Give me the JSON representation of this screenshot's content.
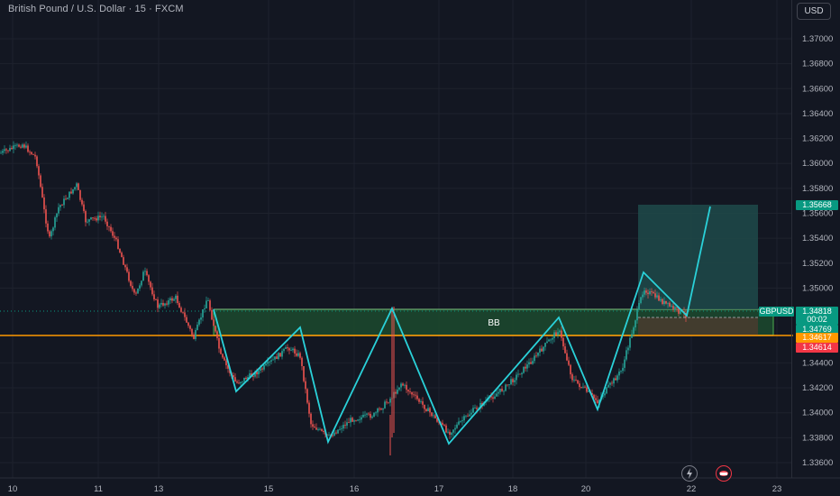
{
  "title": "British Pound / U.S. Dollar · 15 · FXCM",
  "currency_button": "USD",
  "symbol": "GBPUSD",
  "zone_label": "BB",
  "price_axis": {
    "ticks": [
      "1.37000",
      "1.36800",
      "1.36600",
      "1.36400",
      "1.36200",
      "1.36000",
      "1.35800",
      "1.35600",
      "1.35400",
      "1.35200",
      "1.35000",
      "1.34400",
      "1.34200",
      "1.34000",
      "1.33800",
      "1.33600"
    ]
  },
  "time_axis": {
    "ticks": [
      "10",
      "11",
      "13",
      "15",
      "16",
      "17",
      "18",
      "20",
      "22",
      "23"
    ]
  },
  "price_badges": {
    "target": "1.35668",
    "current": "1.34818",
    "countdown": "00:02",
    "entry": "1.34769",
    "support_orange": "1.34617",
    "stop_red": "1.34614"
  },
  "colors": {
    "background": "#131722",
    "up_candle": "#26a69a",
    "down_candle": "#ef5350",
    "pattern_line": "#2ad1d9",
    "support_line": "#ff9800",
    "zone_fill": "#1c4a2e",
    "zone_border": "#4caf50",
    "zone_top_border": "#c9e265",
    "target_fill": "#1c3f41",
    "stop_fill": "#3b2e26",
    "current_badge": "#089981",
    "stop_badge": "#f23645",
    "orange_badge": "#ff9800"
  },
  "icons": {
    "lightning": "lightning-icon",
    "alert": "alert-icon"
  }
}
